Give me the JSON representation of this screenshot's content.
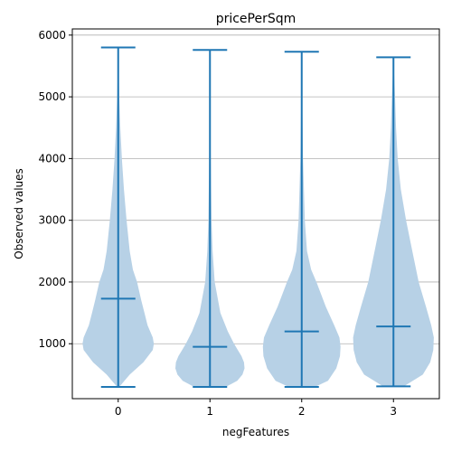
{
  "chart_data": {
    "type": "violin",
    "title": "pricePerSqm",
    "xlabel": "negFeatures",
    "ylabel": "Observed values",
    "categories": [
      "0",
      "1",
      "2",
      "3"
    ],
    "ylim": [
      110,
      6100
    ],
    "yticks": [
      1000,
      2000,
      3000,
      4000,
      5000,
      6000
    ],
    "ytick_labels": [
      "1000",
      "2000",
      "3000",
      "4000",
      "5000",
      "6000"
    ],
    "grid": "horizontal",
    "colors": {
      "body": "#b7d1e6",
      "line": "#1f77b4"
    },
    "violins": [
      {
        "category": "0",
        "min": 300,
        "max": 5800,
        "median": 1730,
        "profile": [
          [
            300,
            0.02
          ],
          [
            500,
            0.22
          ],
          [
            700,
            0.48
          ],
          [
            900,
            0.66
          ],
          [
            1000,
            0.68
          ],
          [
            1100,
            0.66
          ],
          [
            1300,
            0.56
          ],
          [
            1500,
            0.5
          ],
          [
            1700,
            0.44
          ],
          [
            2000,
            0.36
          ],
          [
            2200,
            0.28
          ],
          [
            2500,
            0.22
          ],
          [
            3000,
            0.16
          ],
          [
            3500,
            0.11
          ],
          [
            4000,
            0.07
          ],
          [
            4500,
            0.04
          ],
          [
            5000,
            0.02
          ],
          [
            5800,
            0.0
          ]
        ]
      },
      {
        "category": "1",
        "min": 300,
        "max": 5760,
        "median": 950,
        "profile": [
          [
            300,
            0.3
          ],
          [
            400,
            0.52
          ],
          [
            500,
            0.62
          ],
          [
            600,
            0.66
          ],
          [
            700,
            0.65
          ],
          [
            800,
            0.6
          ],
          [
            900,
            0.53
          ],
          [
            1000,
            0.46
          ],
          [
            1200,
            0.34
          ],
          [
            1500,
            0.2
          ],
          [
            2000,
            0.09
          ],
          [
            2500,
            0.05
          ],
          [
            3000,
            0.03
          ],
          [
            4000,
            0.015
          ],
          [
            5760,
            0.0
          ]
        ]
      },
      {
        "category": "2",
        "min": 300,
        "max": 5730,
        "median": 1200,
        "profile": [
          [
            300,
            0.25
          ],
          [
            400,
            0.5
          ],
          [
            600,
            0.66
          ],
          [
            800,
            0.73
          ],
          [
            950,
            0.74
          ],
          [
            1100,
            0.72
          ],
          [
            1300,
            0.62
          ],
          [
            1600,
            0.46
          ],
          [
            2000,
            0.28
          ],
          [
            2200,
            0.18
          ],
          [
            2500,
            0.1
          ],
          [
            3000,
            0.06
          ],
          [
            4000,
            0.025
          ],
          [
            5000,
            0.01
          ],
          [
            5730,
            0.0
          ]
        ]
      },
      {
        "category": "3",
        "min": 310,
        "max": 5640,
        "median": 1280,
        "profile": [
          [
            310,
            0.2
          ],
          [
            500,
            0.56
          ],
          [
            700,
            0.7
          ],
          [
            900,
            0.76
          ],
          [
            1100,
            0.77
          ],
          [
            1300,
            0.72
          ],
          [
            1600,
            0.62
          ],
          [
            2000,
            0.48
          ],
          [
            2500,
            0.36
          ],
          [
            3000,
            0.24
          ],
          [
            3500,
            0.14
          ],
          [
            4000,
            0.08
          ],
          [
            4500,
            0.05
          ],
          [
            5000,
            0.03
          ],
          [
            5640,
            0.0
          ]
        ]
      }
    ]
  }
}
